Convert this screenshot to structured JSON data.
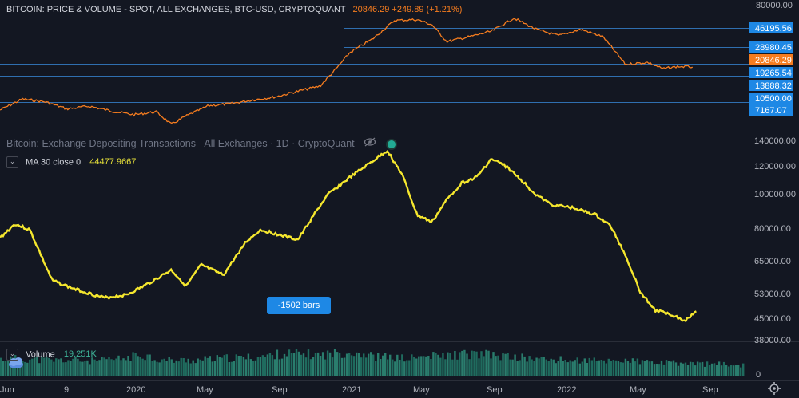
{
  "price_panel": {
    "title": "BITCOIN: PRICE & VOLUME - SPOT, ALL EXCHANGES, BTC-USD, CRYPTOQUANT",
    "last_value": "20846.29 +249.89 (+1.21%)",
    "axis_labels": [
      "80000.00"
    ],
    "level_labels": [
      "46195.56",
      "28980.45",
      "19265.54",
      "13888.32",
      "10500.00",
      "7167.07"
    ],
    "current_price_label": "20846.29",
    "line_color": "#f57c1f"
  },
  "indicator_panel": {
    "title": "Bitcoin: Exchange Depositing Transactions - All Exchanges · 1D · CryptoQuant",
    "ma_label": "MA 30 close 0",
    "ma_value": "44477.9667",
    "axis_labels": [
      "140000.00",
      "120000.00",
      "100000.00",
      "80000.00",
      "65000.00",
      "53000.00",
      "45000.00",
      "38000.00"
    ],
    "bars_badge": "-1502 bars",
    "line_color": "#f5e72e"
  },
  "volume_panel": {
    "label": "Volume",
    "value": "19.251K",
    "axis_label": "0",
    "bar_color": "#1f6b5e"
  },
  "time_axis": {
    "labels": [
      "Jun",
      "9",
      "2020",
      "May",
      "Sep",
      "2021",
      "May",
      "Sep",
      "2022",
      "May",
      "Sep"
    ]
  },
  "icons": {
    "collapse": "chevron-down-icon",
    "visibility": "eye-off-icon",
    "status": "status-dot-icon",
    "settings": "gear-icon",
    "logo": "cloud-logo-icon"
  },
  "chart_data": [
    {
      "type": "line",
      "ylim": [
        6000,
        80000
      ],
      "scale": "log",
      "x": [
        0,
        0.03,
        0.06,
        0.09,
        0.12,
        0.15,
        0.18,
        0.21,
        0.23,
        0.25,
        0.28,
        0.31,
        0.34,
        0.37,
        0.4,
        0.43,
        0.45,
        0.47,
        0.5,
        0.53,
        0.56,
        0.58,
        0.6,
        0.63,
        0.66,
        0.69,
        0.72,
        0.75,
        0.78,
        0.81,
        0.84,
        0.87,
        0.89,
        0.91,
        0.93
      ],
      "y": [
        8200,
        10400,
        9800,
        8400,
        8900,
        8000,
        7400,
        7900,
        6000,
        7200,
        9000,
        9400,
        10200,
        10900,
        12300,
        13800,
        19500,
        28500,
        38000,
        57000,
        58000,
        52000,
        36000,
        40000,
        45000,
        60000,
        47000,
        41000,
        47000,
        40000,
        22000,
        23000,
        20000,
        21000,
        20846
      ]
    },
    {
      "type": "line",
      "ylim": [
        38000,
        140000
      ],
      "scale": "log",
      "x": [
        0,
        0.02,
        0.04,
        0.07,
        0.1,
        0.14,
        0.17,
        0.2,
        0.23,
        0.25,
        0.27,
        0.3,
        0.33,
        0.35,
        0.37,
        0.4,
        0.42,
        0.44,
        0.47,
        0.5,
        0.52,
        0.54,
        0.56,
        0.58,
        0.6,
        0.62,
        0.64,
        0.66,
        0.68,
        0.7,
        0.72,
        0.74,
        0.77,
        0.8,
        0.82,
        0.84,
        0.86,
        0.88,
        0.9,
        0.92,
        0.935
      ],
      "y": [
        74000,
        81000,
        78000,
        56000,
        53000,
        50000,
        51000,
        55000,
        60000,
        54000,
        62000,
        58000,
        72000,
        78000,
        76000,
        73000,
        85000,
        98000,
        110000,
        122000,
        131000,
        112000,
        86000,
        82000,
        95000,
        106000,
        110000,
        124000,
        118000,
        108000,
        98000,
        92000,
        90000,
        86000,
        80000,
        66000,
        52000,
        46000,
        45000,
        43000,
        46000
      ]
    },
    {
      "type": "bar",
      "series": [
        {
          "values": [
            0.7,
            0.72,
            0.68,
            0.65,
            0.66,
            0.62,
            0.66,
            0.72,
            0.9,
            0.66,
            0.64,
            0.66,
            0.7,
            0.74,
            0.76,
            0.82,
            0.92,
            0.9,
            0.86,
            0.94,
            1.0,
            0.82,
            0.76,
            0.72,
            0.8,
            0.84,
            0.88,
            0.9,
            0.84,
            0.78,
            0.72,
            0.68,
            0.66,
            0.64,
            0.62,
            0.66,
            0.6,
            0.56,
            0.54,
            0.52,
            0.5,
            0.48,
            0.46
          ]
        }
      ]
    }
  ]
}
